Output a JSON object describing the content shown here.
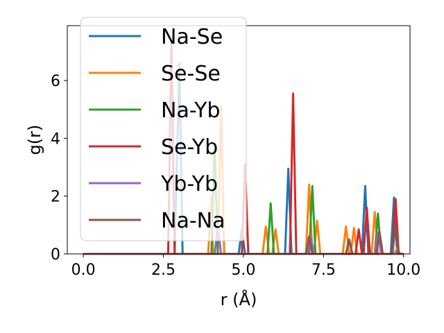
{
  "chart_data": {
    "type": "line",
    "title": "",
    "xlabel": "r (Å)",
    "ylabel": "g(r)",
    "xlim": [
      -0.5,
      10.2
    ],
    "ylim": [
      0,
      7.9
    ],
    "xticks": [
      0.0,
      2.5,
      5.0,
      7.5,
      10.0
    ],
    "xtick_labels": [
      "0.0",
      "2.5",
      "5.0",
      "7.5",
      "10.0"
    ],
    "yticks": [
      0,
      2,
      4,
      6
    ],
    "ytick_labels": [
      "0",
      "2",
      "4",
      "6"
    ],
    "grid": false,
    "legend": "upper-left",
    "series": [
      {
        "name": "Na-Se",
        "color": "#1f77b4",
        "points": [
          [
            0,
            0
          ],
          [
            2.85,
            0
          ],
          [
            3.0,
            6.6
          ],
          [
            3.1,
            0
          ],
          [
            4.85,
            0
          ],
          [
            4.95,
            0.85
          ],
          [
            5.05,
            0
          ],
          [
            6.3,
            0
          ],
          [
            6.4,
            2.95
          ],
          [
            6.5,
            0
          ],
          [
            8.7,
            0
          ],
          [
            8.8,
            2.35
          ],
          [
            8.9,
            0
          ],
          [
            9.6,
            0
          ],
          [
            9.7,
            1.95
          ],
          [
            9.8,
            0
          ],
          [
            10.0,
            0
          ]
        ]
      },
      {
        "name": "Se-Se",
        "color": "#ff7f0e",
        "points": [
          [
            0,
            0
          ],
          [
            3.9,
            0
          ],
          [
            4.0,
            2.0
          ],
          [
            4.05,
            0
          ],
          [
            4.2,
            0
          ],
          [
            4.3,
            5.1
          ],
          [
            4.4,
            0
          ],
          [
            5.6,
            0
          ],
          [
            5.7,
            0.95
          ],
          [
            5.8,
            0
          ],
          [
            5.9,
            0
          ],
          [
            6.0,
            0.85
          ],
          [
            6.1,
            0
          ],
          [
            6.95,
            0
          ],
          [
            7.05,
            2.4
          ],
          [
            7.15,
            0
          ],
          [
            7.2,
            0
          ],
          [
            7.3,
            1.15
          ],
          [
            7.4,
            0
          ],
          [
            8.1,
            0
          ],
          [
            8.2,
            0.95
          ],
          [
            8.3,
            0
          ],
          [
            8.35,
            0
          ],
          [
            8.45,
            0.9
          ],
          [
            8.55,
            0
          ],
          [
            9.0,
            0
          ],
          [
            9.1,
            1.45
          ],
          [
            9.2,
            0
          ],
          [
            9.7,
            0
          ],
          [
            9.8,
            0.2
          ],
          [
            9.9,
            0
          ],
          [
            10.0,
            0
          ]
        ]
      },
      {
        "name": "Na-Yb",
        "color": "#2ca02c",
        "points": [
          [
            0,
            0
          ],
          [
            4.0,
            0
          ],
          [
            4.1,
            3.8
          ],
          [
            4.2,
            0
          ],
          [
            5.75,
            0
          ],
          [
            5.85,
            1.75
          ],
          [
            5.95,
            0
          ],
          [
            7.05,
            0
          ],
          [
            7.15,
            2.35
          ],
          [
            7.25,
            0
          ],
          [
            9.1,
            0
          ],
          [
            9.2,
            1.4
          ],
          [
            9.3,
            0
          ],
          [
            10.0,
            0
          ]
        ]
      },
      {
        "name": "Se-Yb",
        "color": "#d62728",
        "points": [
          [
            0,
            0
          ],
          [
            2.65,
            0
          ],
          [
            2.75,
            7.4
          ],
          [
            2.85,
            0
          ],
          [
            4.95,
            0
          ],
          [
            5.05,
            3.1
          ],
          [
            5.15,
            0
          ],
          [
            6.45,
            0
          ],
          [
            6.55,
            5.55
          ],
          [
            6.65,
            0
          ],
          [
            8.5,
            0
          ],
          [
            8.6,
            0.85
          ],
          [
            8.7,
            0
          ],
          [
            8.75,
            0
          ],
          [
            8.85,
            1.6
          ],
          [
            8.95,
            0
          ],
          [
            9.65,
            0
          ],
          [
            9.75,
            1.9
          ],
          [
            9.85,
            0
          ],
          [
            10.0,
            0
          ]
        ]
      },
      {
        "name": "Yb-Yb",
        "color": "#9467bd",
        "points": [
          [
            0,
            0
          ],
          [
            4.1,
            0
          ],
          [
            4.2,
            1.0
          ],
          [
            4.3,
            0
          ],
          [
            7.0,
            0
          ],
          [
            7.1,
            0.6
          ],
          [
            7.2,
            0
          ],
          [
            8.2,
            0
          ],
          [
            8.3,
            0.5
          ],
          [
            8.4,
            0
          ],
          [
            9.1,
            0
          ],
          [
            9.2,
            0.75
          ],
          [
            9.3,
            0
          ],
          [
            10.0,
            0
          ]
        ]
      },
      {
        "name": "Na-Na",
        "color": "#8c564b",
        "points": [
          [
            0,
            0
          ],
          [
            6.95,
            0
          ],
          [
            7.05,
            0.6
          ],
          [
            7.15,
            0
          ],
          [
            8.2,
            0
          ],
          [
            8.3,
            0.5
          ],
          [
            8.4,
            0
          ],
          [
            9.15,
            0
          ],
          [
            9.25,
            0.75
          ],
          [
            9.35,
            0
          ],
          [
            9.65,
            0
          ],
          [
            9.75,
            1.0
          ],
          [
            9.85,
            0
          ],
          [
            10.0,
            0
          ]
        ]
      }
    ]
  }
}
